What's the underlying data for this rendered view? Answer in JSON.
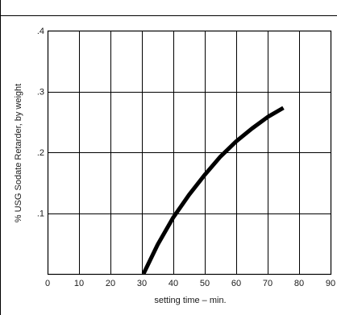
{
  "chart_data": {
    "type": "line",
    "xlabel": "setting time – min.",
    "ylabel": "% USG Sodate Retarder, by weight",
    "xlim": [
      0,
      90
    ],
    "ylim": [
      0,
      0.4
    ],
    "x_ticks": [
      0,
      10,
      20,
      30,
      40,
      50,
      60,
      70,
      80,
      90
    ],
    "x_tick_labels": [
      "0",
      "10",
      "20",
      "30",
      "40",
      "50",
      "60",
      "70",
      "80",
      "90"
    ],
    "y_ticks": [
      0.1,
      0.2,
      0.3,
      0.4
    ],
    "y_tick_labels": [
      ".1",
      ".2",
      ".3",
      ".4"
    ],
    "grid": true,
    "series": [
      {
        "x": [
          30.5,
          35,
          40,
          45,
          50,
          55,
          60,
          65,
          70,
          75
        ],
        "y": [
          0.0,
          0.048,
          0.093,
          0.13,
          0.163,
          0.193,
          0.218,
          0.239,
          0.258,
          0.273
        ],
        "color": "#000000"
      }
    ]
  }
}
